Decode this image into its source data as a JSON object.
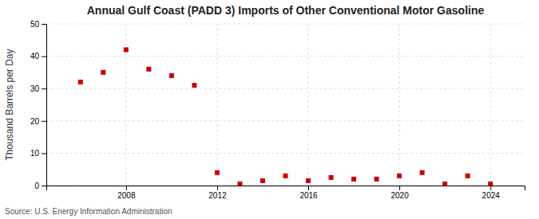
{
  "chart_data": {
    "type": "scatter",
    "title": "Annual Gulf Coast (PADD 3) Imports of Other Conventional Motor Gasoline",
    "ylabel": "Thousand Barrels per Day",
    "source": "Source: U.S. Energy Information Administration",
    "x": [
      2006,
      2007,
      2008,
      2009,
      2010,
      2011,
      2012,
      2013,
      2014,
      2015,
      2016,
      2017,
      2018,
      2019,
      2020,
      2021,
      2022,
      2023,
      2024
    ],
    "values": [
      32,
      35,
      42,
      36,
      34,
      31,
      4,
      0.5,
      1.5,
      3,
      1.5,
      2.5,
      2,
      2,
      3,
      4,
      0.5,
      3,
      0.5
    ],
    "color": "#cc0000",
    "marker": "square",
    "xlim": [
      2004.5,
      2025.5
    ],
    "xticks": [
      2008,
      2012,
      2016,
      2020,
      2024
    ],
    "ylim": [
      0,
      50
    ],
    "yticks": [
      0,
      10,
      20,
      30,
      40,
      50
    ],
    "grid": true
  }
}
